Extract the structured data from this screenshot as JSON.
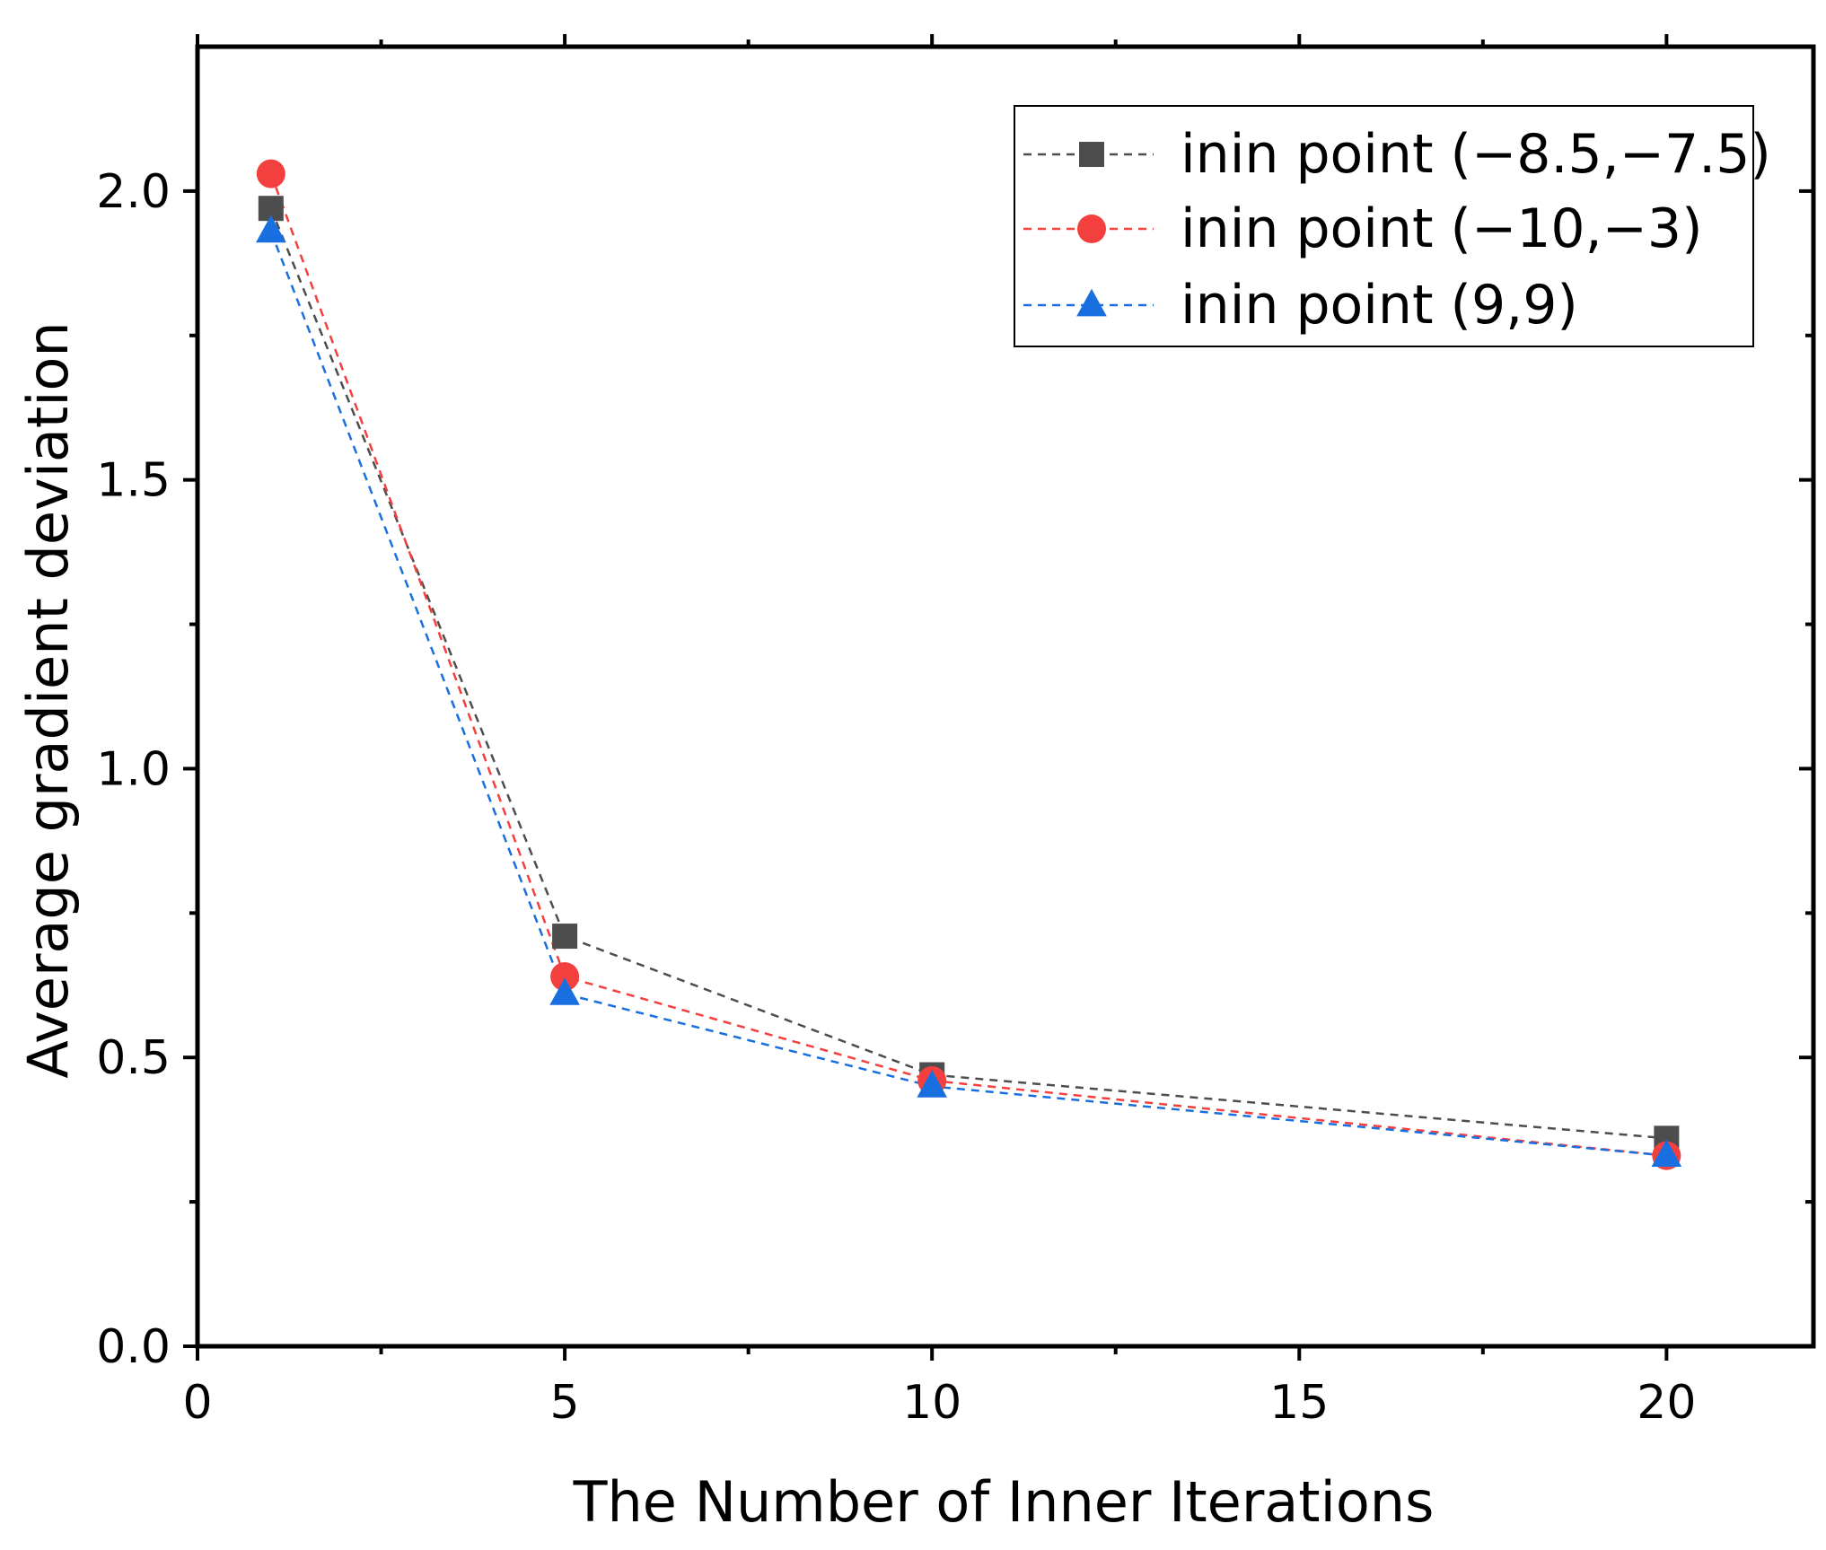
{
  "chart_data": {
    "type": "line",
    "title": "",
    "xlabel": "The Number of Inner Iterations",
    "ylabel": "Average gradient deviation",
    "xlim": [
      0,
      22
    ],
    "ylim": [
      0,
      2.25
    ],
    "xticks": [
      0,
      5,
      10,
      15,
      20
    ],
    "xtick_labels": [
      "0",
      "5",
      "10",
      "15",
      "20"
    ],
    "xminor_ticks": [
      2.5,
      7.5,
      12.5,
      17.5
    ],
    "yticks": [
      0.0,
      0.5,
      1.0,
      1.5,
      2.0
    ],
    "ytick_labels": [
      "0.0",
      "0.5",
      "1.0",
      "1.5",
      "2.0"
    ],
    "yminor_ticks": [
      0.25,
      0.75,
      1.25,
      1.75
    ],
    "legend_position": "top-right",
    "grid": false,
    "x": [
      1,
      5,
      10,
      20
    ],
    "series": [
      {
        "name": "inin point (−8.5,−7.5)",
        "marker": "square",
        "color": "#4d4d4d",
        "values": [
          1.97,
          0.71,
          0.47,
          0.36
        ]
      },
      {
        "name": "inin point (−10,−3)",
        "marker": "circle",
        "color": "#f43f3f",
        "values": [
          2.03,
          0.64,
          0.46,
          0.33
        ]
      },
      {
        "name": "inin point (9,9)",
        "marker": "triangle",
        "color": "#1a6fe0",
        "values": [
          1.93,
          0.61,
          0.45,
          0.33
        ]
      }
    ]
  }
}
